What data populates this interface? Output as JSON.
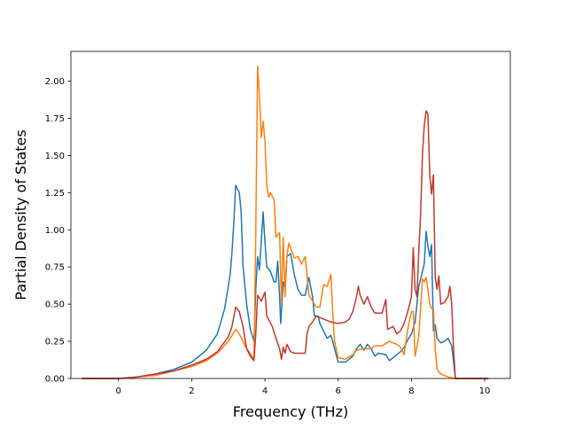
{
  "chart_data": {
    "type": "line",
    "title": "",
    "xlabel": "Frequency (THz)",
    "ylabel": "Partial Density of States",
    "xlim": [
      -1.3,
      10.7
    ],
    "ylim": [
      0,
      2.2
    ],
    "xticks": [
      0,
      2,
      4,
      6,
      8,
      10
    ],
    "yticks": [
      0.0,
      0.25,
      0.5,
      0.75,
      1.0,
      1.25,
      1.5,
      1.75,
      2.0
    ],
    "xtick_labels": [
      "0",
      "2",
      "4",
      "6",
      "8",
      "10"
    ],
    "ytick_labels": [
      "0.00",
      "0.25",
      "0.50",
      "0.75",
      "1.00",
      "1.25",
      "1.50",
      "1.75",
      "2.00"
    ],
    "grid": false,
    "legend": "none",
    "series": [
      {
        "color": "#1f77b4",
        "points": [
          [
            -1.0,
            0
          ],
          [
            0.0,
            0.0
          ],
          [
            0.5,
            0.01
          ],
          [
            1.0,
            0.03
          ],
          [
            1.5,
            0.06
          ],
          [
            2.0,
            0.11
          ],
          [
            2.4,
            0.19
          ],
          [
            2.7,
            0.3
          ],
          [
            2.9,
            0.47
          ],
          [
            3.05,
            0.7
          ],
          [
            3.1,
            0.85
          ],
          [
            3.15,
            1.05
          ],
          [
            3.2,
            1.3
          ],
          [
            3.3,
            1.25
          ],
          [
            3.35,
            1.12
          ],
          [
            3.4,
            0.76
          ],
          [
            3.5,
            0.5
          ],
          [
            3.6,
            0.33
          ],
          [
            3.7,
            0.25
          ],
          [
            3.75,
            0.6
          ],
          [
            3.8,
            0.82
          ],
          [
            3.85,
            0.73
          ],
          [
            3.95,
            1.12
          ],
          [
            4.0,
            0.92
          ],
          [
            4.05,
            0.75
          ],
          [
            4.15,
            0.72
          ],
          [
            4.25,
            0.65
          ],
          [
            4.3,
            0.65
          ],
          [
            4.35,
            0.79
          ],
          [
            4.4,
            0.55
          ],
          [
            4.43,
            0.37
          ],
          [
            4.5,
            0.65
          ],
          [
            4.55,
            0.61
          ],
          [
            4.6,
            0.82
          ],
          [
            4.7,
            0.84
          ],
          [
            4.8,
            0.7
          ],
          [
            4.9,
            0.6
          ],
          [
            5.0,
            0.56
          ],
          [
            5.1,
            0.56
          ],
          [
            5.2,
            0.68
          ],
          [
            5.3,
            0.55
          ],
          [
            5.35,
            0.42
          ],
          [
            5.45,
            0.42
          ],
          [
            5.5,
            0.37
          ],
          [
            5.6,
            0.32
          ],
          [
            5.7,
            0.27
          ],
          [
            5.8,
            0.29
          ],
          [
            5.85,
            0.25
          ],
          [
            5.9,
            0.2
          ],
          [
            6.0,
            0.11
          ],
          [
            6.2,
            0.11
          ],
          [
            6.4,
            0.15
          ],
          [
            6.5,
            0.2
          ],
          [
            6.6,
            0.23
          ],
          [
            6.7,
            0.19
          ],
          [
            6.8,
            0.23
          ],
          [
            6.9,
            0.2
          ],
          [
            7.0,
            0.15
          ],
          [
            7.1,
            0.17
          ],
          [
            7.3,
            0.16
          ],
          [
            7.4,
            0.12
          ],
          [
            7.5,
            0.14
          ],
          [
            7.7,
            0.18
          ],
          [
            7.8,
            0.21
          ],
          [
            7.9,
            0.26
          ],
          [
            8.0,
            0.3
          ],
          [
            8.1,
            0.38
          ],
          [
            8.2,
            0.62
          ],
          [
            8.3,
            0.72
          ],
          [
            8.35,
            0.77
          ],
          [
            8.4,
            0.99
          ],
          [
            8.45,
            0.89
          ],
          [
            8.5,
            0.82
          ],
          [
            8.55,
            0.9
          ],
          [
            8.6,
            0.32
          ],
          [
            8.65,
            0.36
          ],
          [
            8.7,
            0.27
          ],
          [
            8.8,
            0.24
          ],
          [
            8.9,
            0.25
          ],
          [
            9.0,
            0.27
          ],
          [
            9.1,
            0.22
          ],
          [
            9.2,
            0.0
          ],
          [
            10.1,
            0
          ]
        ]
      },
      {
        "color": "#ff7f0e",
        "points": [
          [
            -1.0,
            0
          ],
          [
            0.0,
            0.0
          ],
          [
            0.5,
            0.01
          ],
          [
            1.0,
            0.02
          ],
          [
            1.5,
            0.05
          ],
          [
            2.0,
            0.08
          ],
          [
            2.4,
            0.12
          ],
          [
            2.7,
            0.17
          ],
          [
            3.0,
            0.25
          ],
          [
            3.2,
            0.33
          ],
          [
            3.3,
            0.3
          ],
          [
            3.5,
            0.2
          ],
          [
            3.6,
            0.17
          ],
          [
            3.7,
            0.13
          ],
          [
            3.75,
            1.0
          ],
          [
            3.8,
            2.1
          ],
          [
            3.85,
            1.9
          ],
          [
            3.9,
            1.62
          ],
          [
            3.95,
            1.73
          ],
          [
            4.0,
            1.6
          ],
          [
            4.05,
            1.3
          ],
          [
            4.1,
            1.22
          ],
          [
            4.15,
            1.25
          ],
          [
            4.25,
            1.2
          ],
          [
            4.3,
            0.95
          ],
          [
            4.4,
            0.98
          ],
          [
            4.45,
            0.5
          ],
          [
            4.5,
            0.95
          ],
          [
            4.55,
            0.55
          ],
          [
            4.6,
            0.82
          ],
          [
            4.65,
            0.91
          ],
          [
            4.7,
            0.88
          ],
          [
            4.8,
            0.81
          ],
          [
            4.9,
            0.82
          ],
          [
            5.0,
            0.77
          ],
          [
            5.1,
            0.82
          ],
          [
            5.2,
            0.56
          ],
          [
            5.3,
            0.52
          ],
          [
            5.4,
            0.48
          ],
          [
            5.5,
            0.48
          ],
          [
            5.6,
            0.63
          ],
          [
            5.7,
            0.62
          ],
          [
            5.8,
            0.7
          ],
          [
            5.85,
            0.45
          ],
          [
            5.9,
            0.25
          ],
          [
            6.0,
            0.14
          ],
          [
            6.2,
            0.13
          ],
          [
            6.4,
            0.16
          ],
          [
            6.5,
            0.19
          ],
          [
            6.7,
            0.2
          ],
          [
            6.9,
            0.2
          ],
          [
            7.0,
            0.22
          ],
          [
            7.2,
            0.22
          ],
          [
            7.4,
            0.25
          ],
          [
            7.6,
            0.23
          ],
          [
            7.7,
            0.21
          ],
          [
            7.8,
            0.16
          ],
          [
            7.9,
            0.33
          ],
          [
            8.0,
            0.45
          ],
          [
            8.05,
            0.45
          ],
          [
            8.1,
            0.15
          ],
          [
            8.2,
            0.28
          ],
          [
            8.3,
            0.67
          ],
          [
            8.35,
            0.65
          ],
          [
            8.4,
            0.68
          ],
          [
            8.45,
            0.6
          ],
          [
            8.5,
            0.5
          ],
          [
            8.55,
            0.47
          ],
          [
            8.6,
            0.47
          ],
          [
            8.65,
            0.2
          ],
          [
            8.7,
            0.06
          ],
          [
            8.8,
            0.03
          ],
          [
            9.0,
            0.01
          ],
          [
            9.2,
            0.0
          ],
          [
            10.1,
            0
          ]
        ]
      },
      {
        "color": "#c0392b",
        "points": [
          [
            -1.0,
            0
          ],
          [
            0.0,
            0.0
          ],
          [
            0.5,
            0.01
          ],
          [
            1.0,
            0.03
          ],
          [
            1.5,
            0.05
          ],
          [
            2.0,
            0.09
          ],
          [
            2.4,
            0.13
          ],
          [
            2.7,
            0.18
          ],
          [
            3.0,
            0.28
          ],
          [
            3.1,
            0.35
          ],
          [
            3.2,
            0.48
          ],
          [
            3.3,
            0.45
          ],
          [
            3.4,
            0.35
          ],
          [
            3.5,
            0.2
          ],
          [
            3.6,
            0.15
          ],
          [
            3.7,
            0.12
          ],
          [
            3.75,
            0.3
          ],
          [
            3.8,
            0.56
          ],
          [
            3.9,
            0.52
          ],
          [
            4.0,
            0.58
          ],
          [
            4.05,
            0.42
          ],
          [
            4.2,
            0.35
          ],
          [
            4.3,
            0.27
          ],
          [
            4.4,
            0.2
          ],
          [
            4.45,
            0.13
          ],
          [
            4.5,
            0.21
          ],
          [
            4.55,
            0.17
          ],
          [
            4.6,
            0.23
          ],
          [
            4.7,
            0.18
          ],
          [
            4.8,
            0.17
          ],
          [
            5.0,
            0.17
          ],
          [
            5.1,
            0.17
          ],
          [
            5.15,
            0.3
          ],
          [
            5.2,
            0.35
          ],
          [
            5.3,
            0.38
          ],
          [
            5.4,
            0.42
          ],
          [
            5.6,
            0.4
          ],
          [
            5.8,
            0.38
          ],
          [
            6.0,
            0.37
          ],
          [
            6.2,
            0.38
          ],
          [
            6.3,
            0.4
          ],
          [
            6.4,
            0.45
          ],
          [
            6.5,
            0.55
          ],
          [
            6.55,
            0.62
          ],
          [
            6.6,
            0.56
          ],
          [
            6.7,
            0.5
          ],
          [
            6.8,
            0.55
          ],
          [
            6.9,
            0.48
          ],
          [
            7.0,
            0.44
          ],
          [
            7.2,
            0.44
          ],
          [
            7.3,
            0.53
          ],
          [
            7.35,
            0.33
          ],
          [
            7.5,
            0.35
          ],
          [
            7.6,
            0.3
          ],
          [
            7.7,
            0.32
          ],
          [
            7.8,
            0.37
          ],
          [
            7.9,
            0.45
          ],
          [
            8.0,
            0.55
          ],
          [
            8.05,
            0.88
          ],
          [
            8.1,
            0.6
          ],
          [
            8.15,
            0.55
          ],
          [
            8.2,
            0.85
          ],
          [
            8.25,
            1.1
          ],
          [
            8.3,
            1.5
          ],
          [
            8.35,
            1.7
          ],
          [
            8.4,
            1.8
          ],
          [
            8.45,
            1.78
          ],
          [
            8.5,
            1.37
          ],
          [
            8.55,
            1.24
          ],
          [
            8.6,
            1.37
          ],
          [
            8.65,
            0.68
          ],
          [
            8.7,
            0.6
          ],
          [
            8.75,
            0.69
          ],
          [
            8.8,
            0.5
          ],
          [
            8.9,
            0.51
          ],
          [
            9.0,
            0.55
          ],
          [
            9.05,
            0.62
          ],
          [
            9.1,
            0.5
          ],
          [
            9.15,
            0.2
          ],
          [
            9.2,
            0.0
          ],
          [
            10.1,
            0
          ]
        ]
      }
    ]
  }
}
